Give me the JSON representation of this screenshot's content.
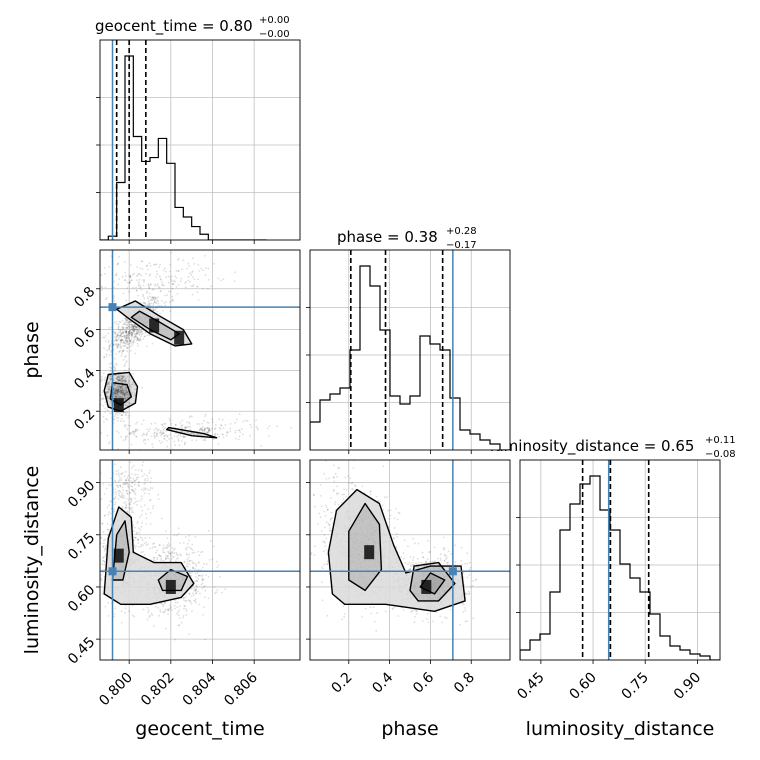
{
  "chart_data": {
    "type": "corner",
    "parameters": [
      "geocent_time",
      "phase",
      "luminosity_distance"
    ],
    "titles": [
      {
        "param": "geocent_time",
        "prefix": "geocent_time = ",
        "value": "0.80",
        "plus": "+0.00",
        "minus": "−0.00"
      },
      {
        "param": "phase",
        "prefix": "phase = ",
        "value": "0.38",
        "plus": "+0.28",
        "minus": "−0.17"
      },
      {
        "param": "luminosity_distance",
        "prefix": "luminosity_distance = ",
        "value": "0.65",
        "plus": "+0.11",
        "minus": "−0.08"
      }
    ],
    "axis_labels": {
      "x": [
        "geocent_time",
        "phase",
        "luminosity_distance"
      ],
      "y": [
        "phase",
        "luminosity_distance"
      ]
    },
    "ranges": {
      "geocent_time": [
        0.7986,
        0.8082
      ],
      "phase": [
        0.01,
        0.99
      ],
      "luminosity_distance": [
        0.39,
        0.965
      ]
    },
    "ticks": {
      "geocent_time": {
        "values": [
          0.8,
          0.802,
          0.804,
          0.806
        ],
        "labels": [
          "0.800",
          "0.802",
          "0.804",
          "0.806"
        ]
      },
      "phase": {
        "values": [
          0.2,
          0.4,
          0.6,
          0.8
        ],
        "labels": [
          "0.2",
          "0.4",
          "0.6",
          "0.8"
        ]
      },
      "luminosity_distance": {
        "values": [
          0.45,
          0.6,
          0.75,
          0.9
        ],
        "labels": [
          "0.45",
          "0.60",
          "0.75",
          "0.90"
        ]
      }
    },
    "truths": {
      "geocent_time": 0.7992,
      "phase": 0.71,
      "luminosity_distance": 0.645
    },
    "quantiles": {
      "geocent_time": [
        0.7994,
        0.8,
        0.8008
      ],
      "phase": [
        0.21,
        0.38,
        0.66
      ],
      "luminosity_distance": [
        0.57,
        0.65,
        0.76
      ]
    },
    "histograms": {
      "geocent_time": {
        "edges_start": 0.7986,
        "bin_width": 0.0004,
        "counts": [
          0.0,
          0.02,
          0.3,
          0.96,
          0.54,
          0.41,
          0.43,
          0.53,
          0.4,
          0.17,
          0.12,
          0.07,
          0.03,
          0.0,
          0.0,
          0.0,
          0.0,
          0.0,
          0.0,
          0.0
        ]
      },
      "phase": {
        "edges_start": 0.01,
        "bin_width": 0.049,
        "counts": [
          0.14,
          0.25,
          0.28,
          0.31,
          0.5,
          0.92,
          0.82,
          0.6,
          0.27,
          0.23,
          0.27,
          0.57,
          0.53,
          0.5,
          0.26,
          0.1,
          0.08,
          0.05,
          0.03,
          0.0
        ]
      },
      "luminosity_distance": {
        "edges_start": 0.39,
        "bin_width": 0.02875,
        "counts": [
          0.05,
          0.1,
          0.13,
          0.34,
          0.65,
          0.78,
          0.88,
          0.92,
          0.75,
          0.65,
          0.48,
          0.41,
          0.34,
          0.23,
          0.12,
          0.07,
          0.05,
          0.03,
          0.02,
          0.0
        ]
      }
    },
    "grid": true,
    "colors": {
      "truth": "#4682b4",
      "hist": "#000000",
      "density": "#000000",
      "grid": "#bfbfbf"
    }
  }
}
